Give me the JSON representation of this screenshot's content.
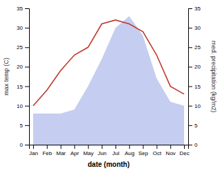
{
  "chart_data": {
    "type": "line",
    "categories": [
      "Jan",
      "Feb",
      "Mar",
      "Apr",
      "May",
      "Jun",
      "Jul",
      "Aug",
      "Sep",
      "Oct",
      "Nov",
      "Dec"
    ],
    "x_label": "date (month)",
    "y_label": "max temp (C)",
    "y2_label": "med. precipitation (kg/m2)",
    "ylim": [
      0,
      35
    ],
    "yticks": [
      0,
      5,
      10,
      15,
      20,
      25,
      30,
      35
    ],
    "y2lim": [
      0,
      35
    ],
    "y2ticks": [
      0,
      5,
      10,
      15,
      20,
      25,
      30,
      35
    ],
    "series": [
      {
        "type": "area",
        "axis": "y2",
        "color": "#c5cdf0",
        "values": [
          8,
          8,
          8,
          9,
          15,
          22,
          30,
          33,
          28,
          17,
          11,
          10
        ]
      },
      {
        "type": "line",
        "color": "#c0392b",
        "values": [
          10,
          14,
          19,
          23,
          25,
          31,
          32,
          31,
          29,
          23,
          15,
          13
        ]
      }
    ]
  }
}
